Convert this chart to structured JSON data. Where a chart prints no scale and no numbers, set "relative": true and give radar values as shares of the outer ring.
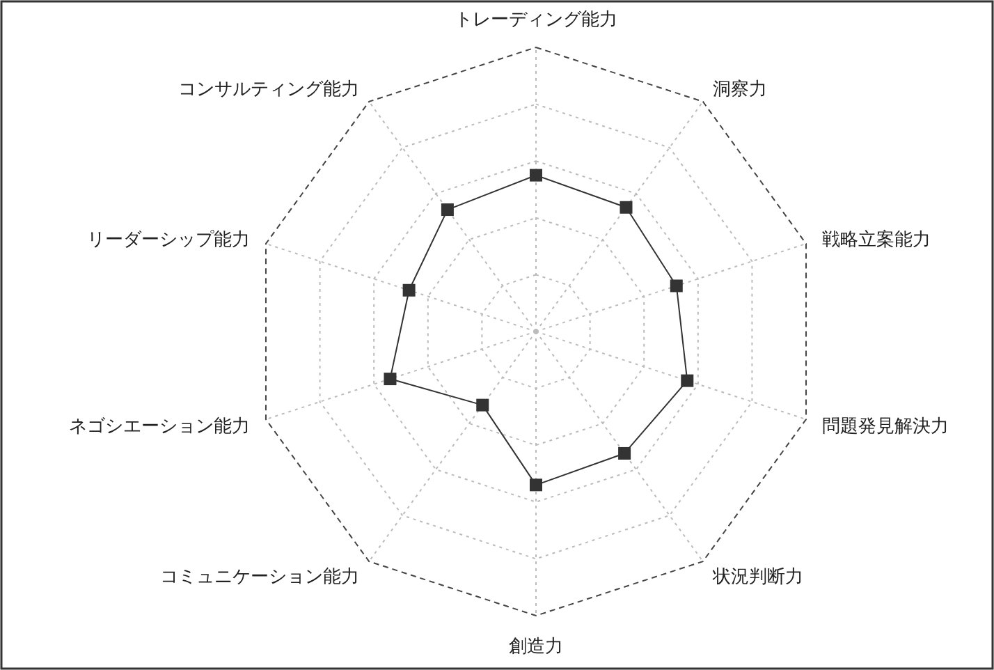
{
  "chart_data": {
    "type": "radar",
    "relative": true,
    "categories": [
      "トレーディング能力",
      "洞察力",
      "戦略立案能力",
      "問題発見解決力",
      "状況判断力",
      "創造力",
      "コミュニケーション能力",
      "ネゴシエーション能力",
      "リーダーシップ能力",
      "コンサルティング能力"
    ],
    "series": [
      {
        "color": "#333333",
        "values": [
          0.55,
          0.54,
          0.52,
          0.56,
          0.53,
          0.54,
          0.32,
          0.54,
          0.47,
          0.53
        ]
      }
    ],
    "marker": "square",
    "line_style": "solid",
    "grid": true
  }
}
